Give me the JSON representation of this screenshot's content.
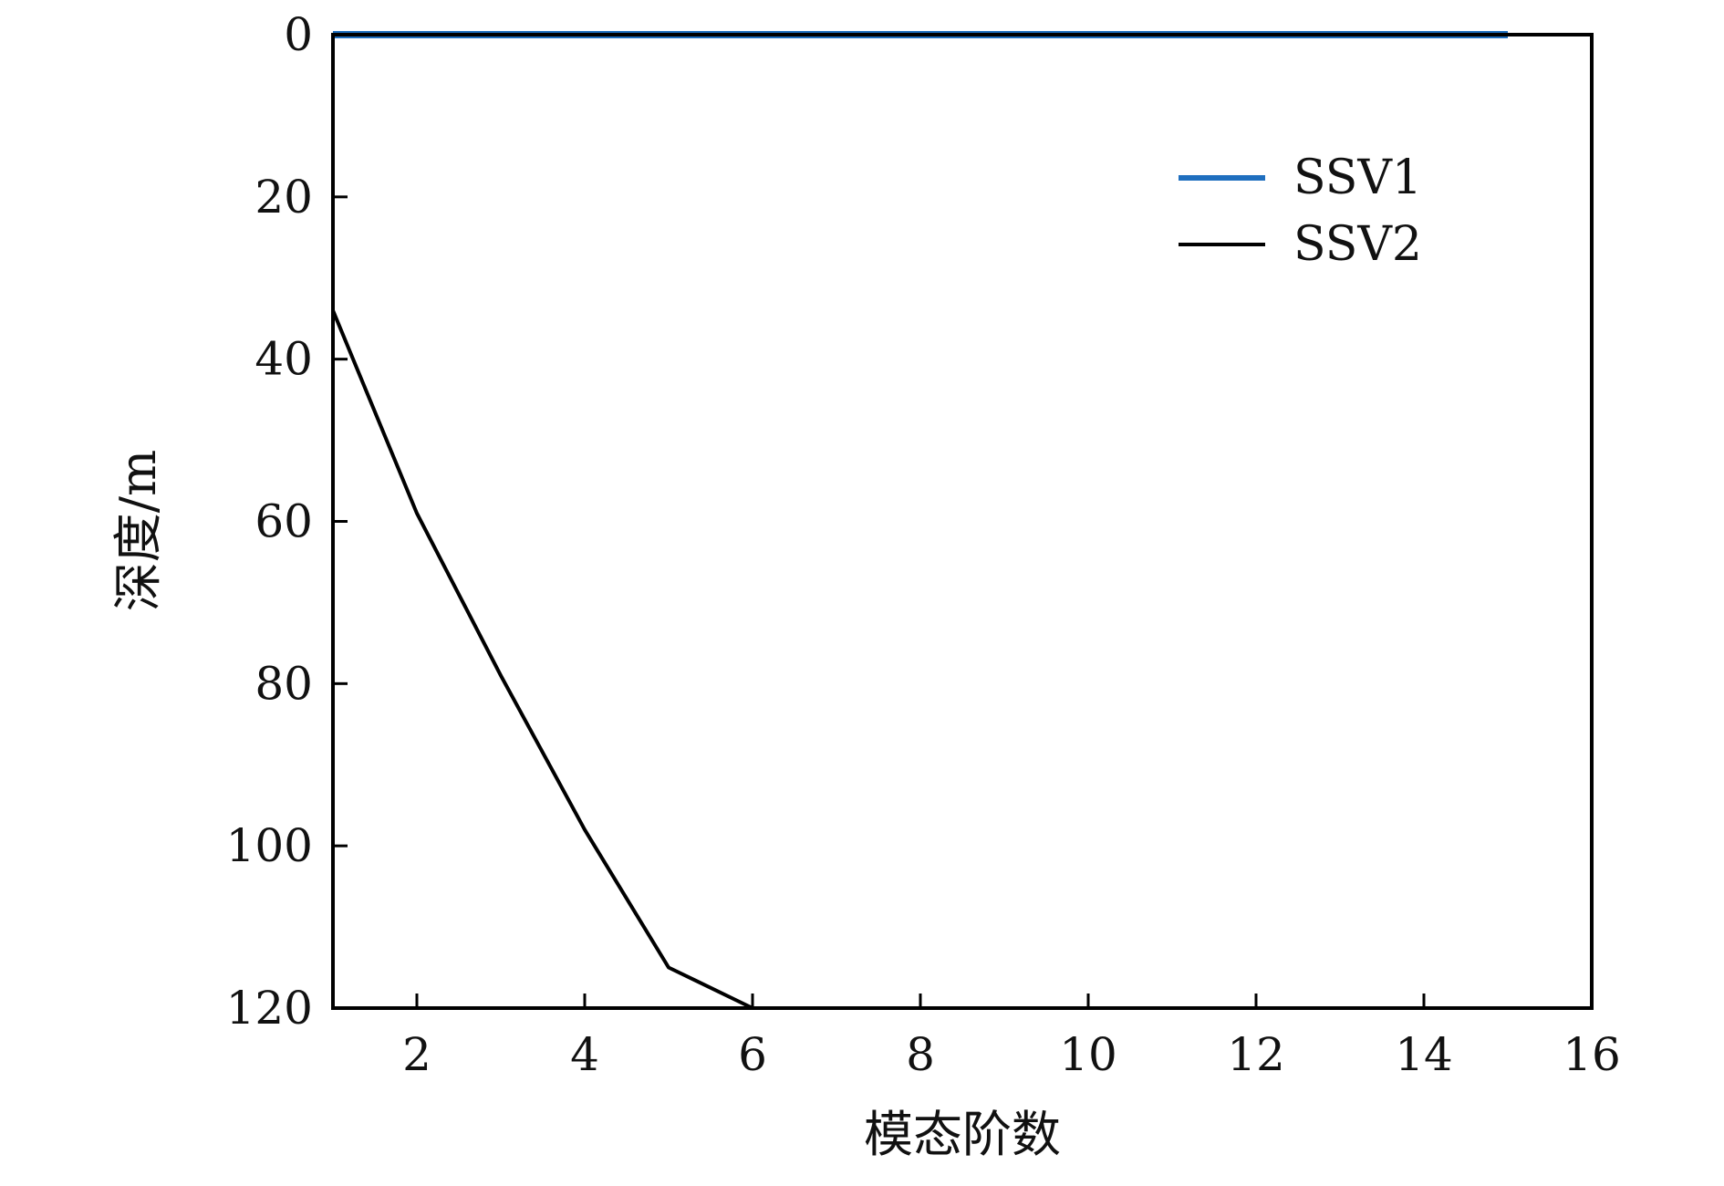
{
  "chart_data": {
    "type": "line",
    "title": "",
    "xlabel": "模态阶数",
    "ylabel": "深度/m",
    "xlim": [
      1,
      16
    ],
    "ylim": [
      0,
      120
    ],
    "y_inverted": true,
    "x_ticks": [
      2,
      4,
      6,
      8,
      10,
      12,
      14,
      16
    ],
    "y_ticks": [
      0,
      20,
      40,
      60,
      80,
      100,
      120
    ],
    "grid": false,
    "legend_position": "top-right",
    "series": [
      {
        "name": "SSV1",
        "color": "#1f6fbf",
        "x": [
          1,
          2,
          3,
          4,
          5,
          6,
          7,
          8,
          9,
          10,
          11,
          12,
          13,
          14,
          15
        ],
        "y": [
          0,
          0,
          0,
          0,
          0,
          0,
          0,
          0,
          0,
          0,
          0,
          0,
          0,
          0,
          0
        ]
      },
      {
        "name": "SSV2",
        "color": "#000000",
        "x": [
          1,
          2,
          3,
          4,
          5,
          6,
          7,
          8,
          9,
          10,
          11,
          12,
          13,
          14,
          15
        ],
        "y": [
          34,
          59,
          79,
          98,
          115,
          120,
          120,
          120,
          120,
          120,
          120,
          120,
          120,
          120,
          120
        ]
      }
    ]
  }
}
